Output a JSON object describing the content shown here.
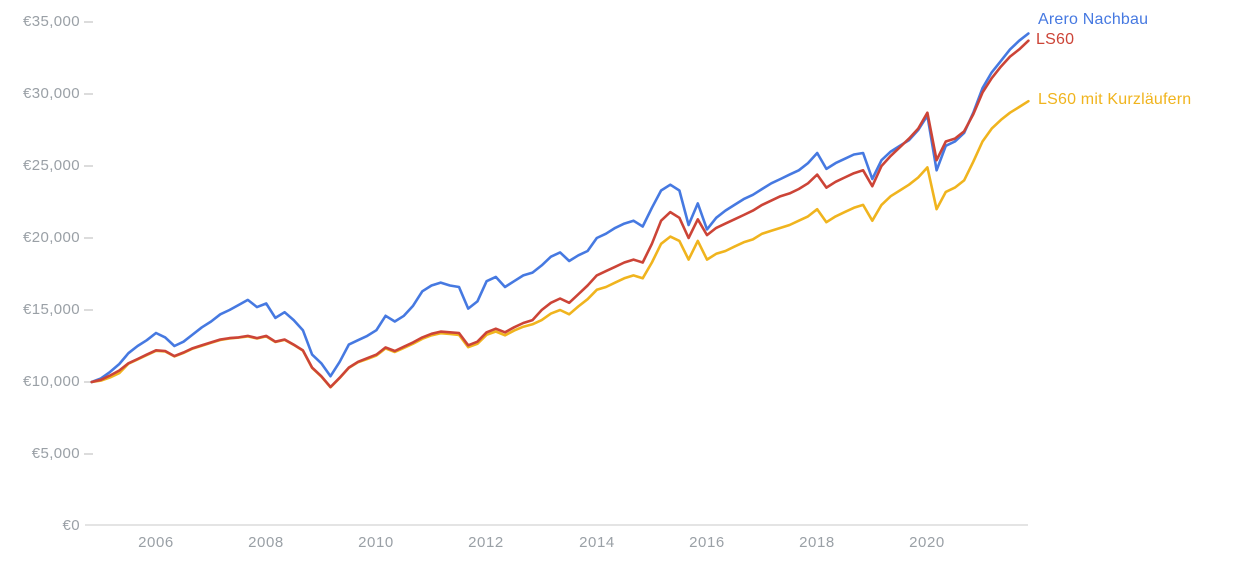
{
  "chart_data": {
    "type": "line",
    "title": "",
    "currency": "EUR",
    "legend_position": "end-of-line",
    "grid": "off",
    "x_axis": {
      "label": "",
      "start_year_decimal": 2004.8333,
      "step_years": 0.1666667,
      "tick_years": [
        2006,
        2008,
        2010,
        2012,
        2014,
        2016,
        2018,
        2020
      ],
      "tick_labels": [
        "2006",
        "2008",
        "2010",
        "2012",
        "2014",
        "2016",
        "2018",
        "2020"
      ]
    },
    "y_axis": {
      "label": "",
      "min": 0,
      "max": 35000,
      "tick_step": 5000,
      "tick_labels_top_to_bottom": [
        "€35,000",
        "€30,000",
        "€25,000",
        "€20,000",
        "€15,000",
        "€10,000",
        "€5,000",
        "€0"
      ]
    },
    "series": [
      {
        "name": "Arero Nachbau",
        "color": "#4679e1",
        "values": [
          10000,
          10250,
          10700,
          11250,
          12000,
          12500,
          12900,
          13400,
          13100,
          12500,
          12800,
          13300,
          13800,
          14200,
          14700,
          15000,
          15350,
          15700,
          15200,
          15450,
          14450,
          14850,
          14300,
          13600,
          11900,
          11300,
          10400,
          11400,
          12600,
          12900,
          13200,
          13600,
          14600,
          14200,
          14600,
          15300,
          16300,
          16700,
          16900,
          16700,
          16600,
          15100,
          15600,
          17000,
          17300,
          16600,
          17000,
          17400,
          17600,
          18100,
          18700,
          19000,
          18400,
          18800,
          19100,
          20000,
          20300,
          20700,
          21000,
          21200,
          20800,
          22100,
          23300,
          23700,
          23300,
          20900,
          22400,
          20600,
          21400,
          21900,
          22300,
          22700,
          23000,
          23400,
          23800,
          24100,
          24400,
          24700,
          25200,
          25900,
          24800,
          25200,
          25500,
          25800,
          25900,
          24100,
          25400,
          26000,
          26400,
          26800,
          27500,
          28500,
          24700,
          26400,
          26700,
          27300,
          28700,
          30400,
          31500,
          32300,
          33100,
          33700,
          34200
        ]
      },
      {
        "name": "LS60",
        "color": "#cc4437",
        "values": [
          10000,
          10150,
          10450,
          10800,
          11300,
          11600,
          11900,
          12200,
          12150,
          11800,
          12050,
          12350,
          12550,
          12750,
          12950,
          13050,
          13100,
          13200,
          13050,
          13200,
          12800,
          12950,
          12600,
          12200,
          11000,
          10400,
          9650,
          10300,
          11000,
          11400,
          11650,
          11900,
          12400,
          12150,
          12450,
          12750,
          13100,
          13350,
          13500,
          13450,
          13400,
          12550,
          12800,
          13450,
          13700,
          13450,
          13800,
          14100,
          14300,
          15000,
          15500,
          15800,
          15500,
          16100,
          16700,
          17400,
          17700,
          18000,
          18300,
          18500,
          18300,
          19600,
          21200,
          21800,
          21400,
          20000,
          21300,
          20200,
          20700,
          21000,
          21300,
          21600,
          21900,
          22300,
          22600,
          22900,
          23100,
          23400,
          23800,
          24400,
          23500,
          23900,
          24200,
          24500,
          24700,
          23600,
          25000,
          25700,
          26300,
          26900,
          27600,
          28700,
          25400,
          26700,
          26900,
          27400,
          28600,
          30100,
          31100,
          31900,
          32600,
          33100,
          33700
        ]
      },
      {
        "name": "LS60 mit Kurzläufern",
        "color": "#f0b41e",
        "values": [
          10000,
          10100,
          10320,
          10620,
          11270,
          11570,
          11870,
          12170,
          12120,
          11780,
          12020,
          12320,
          12520,
          12720,
          12920,
          13020,
          13080,
          13170,
          13020,
          13170,
          12780,
          12930,
          12580,
          12180,
          10980,
          10380,
          9630,
          10280,
          10980,
          11370,
          11600,
          11840,
          12330,
          12080,
          12370,
          12660,
          13000,
          13240,
          13390,
          13330,
          13270,
          12420,
          12650,
          13280,
          13510,
          13240,
          13570,
          13840,
          14010,
          14300,
          14750,
          15000,
          14700,
          15250,
          15750,
          16400,
          16600,
          16900,
          17200,
          17400,
          17200,
          18300,
          19600,
          20100,
          19800,
          18500,
          19800,
          18500,
          18900,
          19100,
          19400,
          19700,
          19900,
          20300,
          20500,
          20700,
          20900,
          21200,
          21500,
          22000,
          21100,
          21500,
          21800,
          22100,
          22300,
          21200,
          22300,
          22900,
          23300,
          23700,
          24200,
          24900,
          22000,
          23200,
          23500,
          24000,
          25300,
          26700,
          27600,
          28200,
          28700,
          29100,
          29500
        ]
      }
    ],
    "end_values": {
      "arero_nachbau": 34200,
      "ls60": 33700,
      "ls60_mit_kurzlaeufern": 29500
    },
    "start_value_all_series": 10000
  },
  "colors": {
    "background": "#ffffff",
    "axis_text": "#9aa0a6",
    "baseline": "#e4e4e4",
    "tick_dash": "#dcdcdc"
  }
}
